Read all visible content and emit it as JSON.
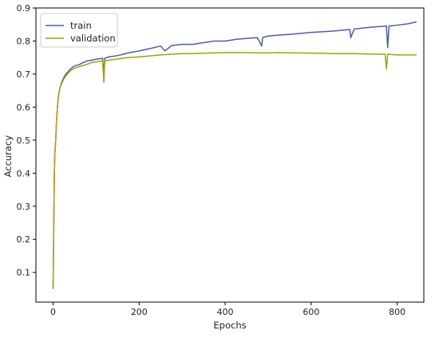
{
  "chart_data": {
    "type": "line",
    "title": "",
    "xlabel": "Epochs",
    "ylabel": "Accuracy",
    "xlim": [
      -40,
      862
    ],
    "ylim": [
      0.01,
      0.9
    ],
    "xticks": [
      0,
      200,
      400,
      600,
      800
    ],
    "xtick_labels": [
      "0",
      "200",
      "400",
      "600",
      "800"
    ],
    "yticks": [
      0.1,
      0.2,
      0.3,
      0.4,
      0.5,
      0.6,
      0.7,
      0.8,
      0.9
    ],
    "ytick_labels": [
      "0.1",
      "0.2",
      "0.3",
      "0.4",
      "0.5",
      "0.6",
      "0.7",
      "0.8",
      "0.9"
    ],
    "grid": false,
    "legend_position": "top-left",
    "series": [
      {
        "name": "train",
        "color": "#4a5eac",
        "x": [
          0,
          1,
          2,
          3,
          4,
          6,
          8,
          10,
          12,
          15,
          20,
          25,
          30,
          40,
          50,
          60,
          70,
          80,
          90,
          100,
          115,
          118,
          120,
          130,
          150,
          175,
          200,
          225,
          250,
          260,
          275,
          300,
          325,
          350,
          375,
          400,
          425,
          450,
          475,
          485,
          487,
          490,
          500,
          525,
          550,
          575,
          600,
          625,
          650,
          675,
          690,
          692,
          700,
          725,
          750,
          775,
          778,
          781,
          800,
          825,
          845
        ],
        "y": [
          0.05,
          0.18,
          0.3,
          0.41,
          0.46,
          0.5,
          0.56,
          0.6,
          0.63,
          0.655,
          0.675,
          0.69,
          0.7,
          0.715,
          0.725,
          0.728,
          0.735,
          0.74,
          0.742,
          0.745,
          0.748,
          0.695,
          0.748,
          0.752,
          0.756,
          0.764,
          0.77,
          0.777,
          0.785,
          0.77,
          0.786,
          0.79,
          0.79,
          0.795,
          0.8,
          0.8,
          0.805,
          0.808,
          0.81,
          0.785,
          0.81,
          0.812,
          0.815,
          0.818,
          0.82,
          0.823,
          0.826,
          0.828,
          0.83,
          0.833,
          0.835,
          0.81,
          0.836,
          0.84,
          0.843,
          0.845,
          0.78,
          0.845,
          0.848,
          0.852,
          0.858
        ]
      },
      {
        "name": "validation",
        "color": "#9ca600",
        "x": [
          0,
          1,
          2,
          3,
          4,
          6,
          8,
          10,
          12,
          15,
          20,
          25,
          30,
          40,
          50,
          60,
          70,
          80,
          90,
          100,
          115,
          118,
          120,
          130,
          150,
          175,
          200,
          225,
          250,
          275,
          300,
          325,
          350,
          375,
          400,
          425,
          450,
          475,
          500,
          525,
          550,
          575,
          600,
          625,
          650,
          675,
          700,
          725,
          750,
          772,
          775,
          778,
          800,
          825,
          845
        ],
        "y": [
          0.05,
          0.18,
          0.3,
          0.41,
          0.46,
          0.5,
          0.56,
          0.6,
          0.63,
          0.655,
          0.672,
          0.685,
          0.695,
          0.71,
          0.718,
          0.722,
          0.726,
          0.73,
          0.735,
          0.737,
          0.74,
          0.675,
          0.74,
          0.742,
          0.746,
          0.75,
          0.752,
          0.755,
          0.758,
          0.76,
          0.762,
          0.762,
          0.763,
          0.764,
          0.765,
          0.765,
          0.765,
          0.764,
          0.764,
          0.765,
          0.764,
          0.764,
          0.763,
          0.763,
          0.762,
          0.762,
          0.762,
          0.761,
          0.76,
          0.76,
          0.715,
          0.76,
          0.758,
          0.758,
          0.758
        ]
      }
    ],
    "colors": {
      "train_line": "#4a5eac",
      "validation_line": "#9ca600",
      "overlap_line": "#c8962a"
    }
  }
}
